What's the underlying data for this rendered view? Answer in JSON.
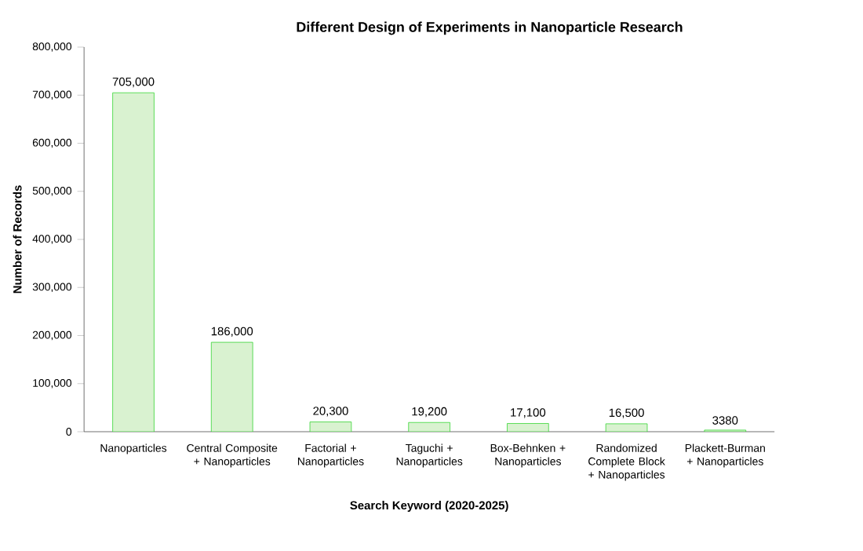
{
  "chart_data": {
    "type": "bar",
    "title": "Different Design of Experiments in Nanoparticle Research",
    "xlabel": "Search Keyword (2020-2025)",
    "ylabel": "Number of Records",
    "categories": [
      "Nanoparticles",
      "Central Composite + Nanoparticles",
      "Factorial + Nanoparticles",
      "Taguchi + Nanoparticles",
      "Box-Behnken + Nanoparticles",
      "Randomized Complete Block + Nanoparticles",
      "Plackett-Burman + Nanoparticles"
    ],
    "values": [
      705000,
      186000,
      20300,
      19200,
      17100,
      16500,
      3380
    ],
    "value_labels": [
      "705,000",
      "186,000",
      "20,300",
      "19,200",
      "17,100",
      "16,500",
      "3380"
    ],
    "color": "#d9f2d0",
    "ylim": [
      0,
      800000
    ],
    "yticks": [
      0,
      {
        "value": 100000,
        "label": "100,000"
      },
      {
        "value": 200000,
        "label": "200,000"
      },
      {
        "value": 300000,
        "label": "300,000"
      },
      {
        "value": 400000,
        "label": "400,000"
      },
      {
        "value": 500000,
        "label": "500,000"
      },
      {
        "value": 600000,
        "label": "600,000"
      },
      {
        "value": 700000,
        "label": "700,000"
      },
      {
        "value": 800000,
        "label": "800,000"
      }
    ],
    "grid": false
  }
}
